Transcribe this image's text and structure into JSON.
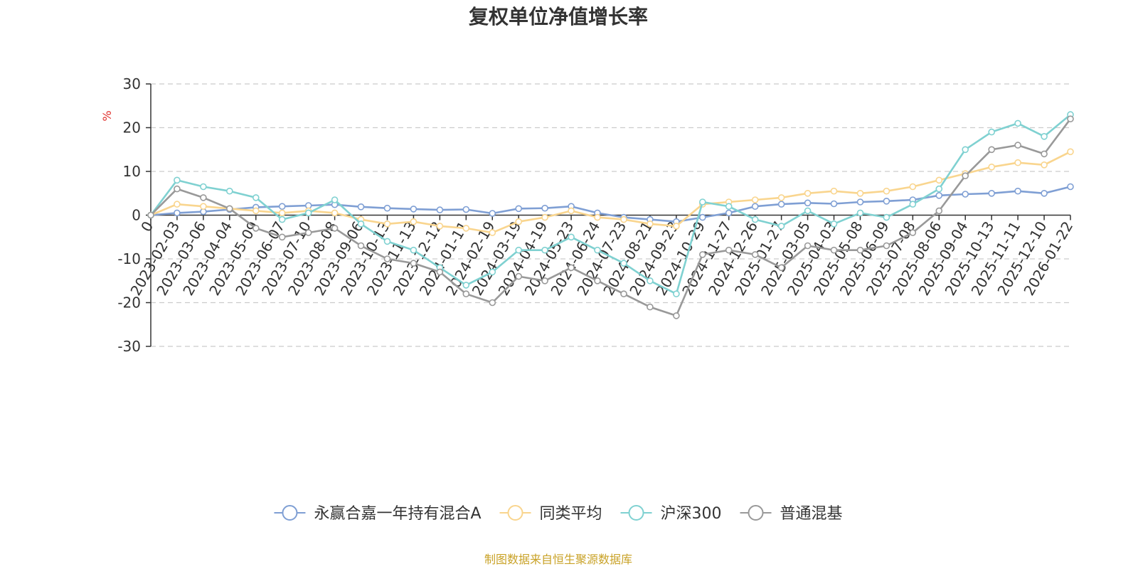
{
  "chart_data": {
    "type": "line",
    "title": "复权单位净值增长率",
    "ylabel": "%",
    "xlabel": "",
    "ylim": [
      -30,
      30
    ],
    "yticks": [
      "30",
      "20",
      "10",
      "0",
      "-10",
      "-20",
      "-30"
    ],
    "grid": true,
    "legend_position": "bottom",
    "categories": [
      "0",
      "2023-02-03",
      "2023-03-06",
      "2023-04-04",
      "2023-05-09",
      "2023-06-07",
      "2023-07-10",
      "2023-08-08",
      "2023-09-06",
      "2023-10-13",
      "2023-11-13",
      "2023-12-12",
      "2024-01-11",
      "2024-02-19",
      "2024-03-19",
      "2024-04-19",
      "2024-05-23",
      "2024-06-24",
      "2024-07-23",
      "2024-08-21",
      "2024-09-23",
      "2024-10-29",
      "2024-11-27",
      "2024-12-26",
      "2025-01-27",
      "2025-03-05",
      "2025-04-03",
      "2025-05-08",
      "2025-06-09",
      "2025-07-08",
      "2025-08-06",
      "2025-09-04",
      "2025-10-13",
      "2025-11-11",
      "2025-12-10",
      "2026-01-22"
    ],
    "series": [
      {
        "name": "永赢合嘉一年持有混合A",
        "color": "#7f9fd4",
        "values": [
          0,
          0.5,
          0.8,
          1.3,
          1.8,
          2.0,
          2.2,
          2.4,
          1.9,
          1.6,
          1.4,
          1.2,
          1.3,
          0.4,
          1.5,
          1.6,
          2.0,
          0.5,
          -0.5,
          -1.0,
          -1.5,
          -0.5,
          0.5,
          2.0,
          2.5,
          2.8,
          2.6,
          3.0,
          3.2,
          3.5,
          4.5,
          4.8,
          5.0,
          5.5,
          5.0,
          6.5
        ]
      },
      {
        "name": "同类平均",
        "color": "#f9d58e",
        "values": [
          0,
          2.5,
          2.0,
          1.5,
          1.0,
          0.5,
          1.0,
          0.5,
          -1.0,
          -2.0,
          -1.5,
          -2.5,
          -3.0,
          -4.0,
          -1.5,
          -0.5,
          1.0,
          -0.5,
          -1.0,
          -2.0,
          -2.5,
          2.5,
          3.0,
          3.5,
          4.0,
          5.0,
          5.5,
          5.0,
          5.5,
          6.5,
          8.0,
          9.5,
          11.0,
          12.0,
          11.5,
          14.5
        ]
      },
      {
        "name": "沪深300",
        "color": "#7fd1d1",
        "values": [
          0,
          8.0,
          6.5,
          5.5,
          4.0,
          -1.0,
          0.5,
          3.5,
          -2.0,
          -6.0,
          -8.0,
          -12.0,
          -16.0,
          -13.0,
          -8.0,
          -8.0,
          -5.0,
          -8.0,
          -11.0,
          -15.0,
          -18.0,
          3.0,
          2.0,
          -1.0,
          -2.5,
          1.0,
          -2.0,
          0.5,
          -0.5,
          2.5,
          6.0,
          15.0,
          19.0,
          21.0,
          18.0,
          23.0
        ]
      },
      {
        "name": "普通混基",
        "color": "#999999",
        "values": [
          0,
          6.0,
          4.0,
          1.5,
          -3.0,
          -5.0,
          -4.0,
          -3.0,
          -7.0,
          -10.0,
          -11.0,
          -13.0,
          -18.0,
          -20.0,
          -14.0,
          -15.0,
          -12.0,
          -15.0,
          -18.0,
          -21.0,
          -23.0,
          -9.0,
          -8.0,
          -9.0,
          -12.0,
          -7.0,
          -8.0,
          -8.0,
          -7.0,
          -4.0,
          1.0,
          9.0,
          15.0,
          16.0,
          14.0,
          22.0
        ]
      }
    ],
    "footer": "制图数据来自恒生聚源数据库"
  }
}
